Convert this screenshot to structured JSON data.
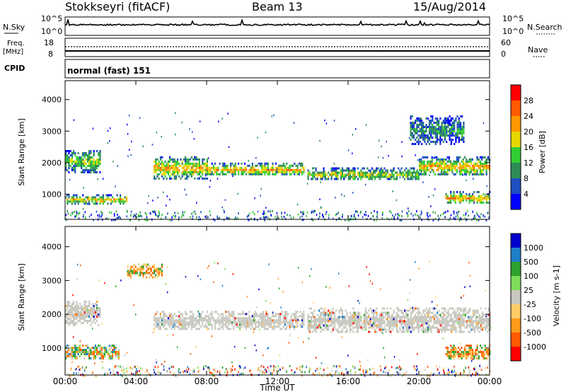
{
  "header": {
    "station": "Stokkseyri (fitACF)",
    "beam": "Beam 13",
    "date": "15/Aug/2014"
  },
  "noise_panel": {
    "left_label": "N.Sky",
    "right_label": "N.Search",
    "left_ticks": [
      "10^5",
      "10^0"
    ],
    "right_ticks": [
      "10^5",
      "10^0"
    ]
  },
  "freq_panel": {
    "left_label_1": "Freq.",
    "left_label_2": "[MHz]",
    "right_label": "Nave",
    "left_ticks": [
      "18",
      "8"
    ],
    "right_ticks": [
      "60",
      "0"
    ]
  },
  "cpid": {
    "label": "CPID",
    "value": "normal (fast) 151"
  },
  "x_axis": {
    "label": "Time UT",
    "ticks": [
      "00:00",
      "04:00",
      "08:00",
      "12:00",
      "16:00",
      "20:00",
      "00:00"
    ]
  },
  "chart_data": [
    {
      "type": "heatmap",
      "panel": "power",
      "ylabel": "Slant Range [km]",
      "yticks": [
        1000,
        2000,
        3000,
        4000
      ],
      "ylim": [
        200,
        4600
      ],
      "xlim_hours": [
        0,
        24
      ],
      "colorbar": {
        "label": "Power [dB]",
        "ticks": [
          "28",
          "24",
          "20",
          "16",
          "12",
          "8",
          "4"
        ],
        "colors": [
          "#0000ff",
          "#1f4ec0",
          "#2e8b57",
          "#32cd32",
          "#e6d800",
          "#ff9900",
          "#ff5a00",
          "#ff0000"
        ]
      },
      "echo_bands": [
        {
          "t0": 0.0,
          "t1": 2.0,
          "r0": 1700,
          "r1": 2400,
          "intensity": "medium"
        },
        {
          "t0": 0.0,
          "t1": 3.5,
          "r0": 700,
          "r1": 1000,
          "intensity": "high"
        },
        {
          "t0": 5.0,
          "t1": 8.0,
          "r0": 1500,
          "r1": 2200,
          "intensity": "high"
        },
        {
          "t0": 8.0,
          "t1": 13.5,
          "r0": 1600,
          "r1": 2000,
          "intensity": "high"
        },
        {
          "t0": 13.7,
          "t1": 20.0,
          "r0": 1450,
          "r1": 1850,
          "intensity": "medium"
        },
        {
          "t0": 20.0,
          "t1": 24.0,
          "r0": 1600,
          "r1": 2200,
          "intensity": "high"
        },
        {
          "t0": 19.5,
          "t1": 22.5,
          "r0": 2600,
          "r1": 3500,
          "intensity": "low"
        },
        {
          "t0": 21.5,
          "t1": 24.0,
          "r0": 700,
          "r1": 1100,
          "intensity": "high"
        }
      ]
    },
    {
      "type": "heatmap",
      "panel": "velocity",
      "ylabel": "Slant Range [km]",
      "yticks": [
        1000,
        2000,
        3000,
        4000
      ],
      "ylim": [
        200,
        4600
      ],
      "xlim_hours": [
        0,
        24
      ],
      "colorbar": {
        "label": "Velocity [m s-1]",
        "ticks": [
          "1000",
          "500",
          "100",
          "25",
          "-25",
          "-100",
          "-500",
          "-1000"
        ],
        "colors": [
          "#ff0000",
          "#ff5a00",
          "#ff9a1a",
          "#ffcc66",
          "#c8c8c0",
          "#7fdc5a",
          "#2ea02e",
          "#1f7ec8",
          "#0000cc"
        ]
      },
      "echo_bands": [
        {
          "t0": 0.0,
          "t1": 2.0,
          "r0": 1700,
          "r1": 2400,
          "velocity": "gray"
        },
        {
          "t0": 0.0,
          "t1": 3.0,
          "r0": 700,
          "r1": 1100,
          "velocity": "mixed"
        },
        {
          "t0": 5.0,
          "t1": 13.5,
          "r0": 1550,
          "r1": 2100,
          "velocity": "gray"
        },
        {
          "t0": 13.7,
          "t1": 24.0,
          "r0": 1450,
          "r1": 2200,
          "velocity": "gray"
        },
        {
          "t0": 3.5,
          "t1": 5.5,
          "r0": 3100,
          "r1": 3500,
          "velocity": "orange"
        },
        {
          "t0": 21.5,
          "t1": 24.0,
          "r0": 700,
          "r1": 1100,
          "velocity": "orange"
        }
      ]
    }
  ]
}
